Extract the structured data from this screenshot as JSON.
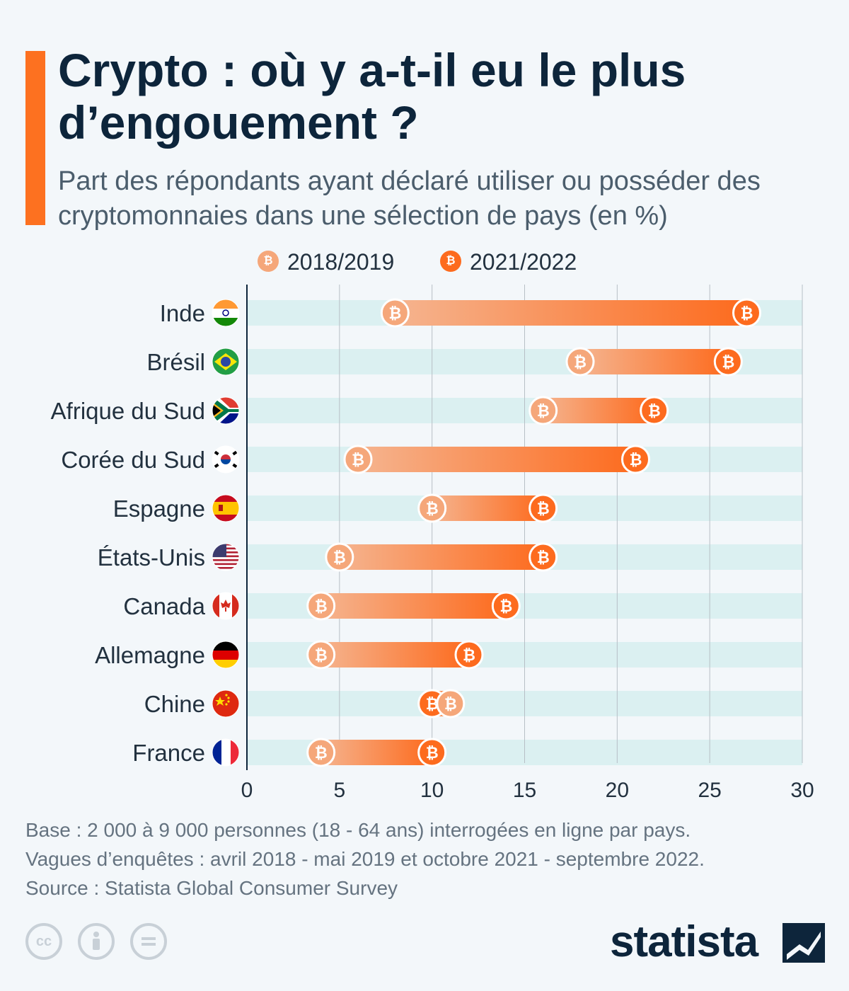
{
  "header": {
    "title": "Crypto : où y a-t-il eu le plus d’engouement ?",
    "subtitle": "Part des répondants ayant déclaré utiliser ou posséder des cryptomonnaies dans une sélection de pays (en %)"
  },
  "legend": {
    "series1": "2018/2019",
    "series2": "2021/2022"
  },
  "colors": {
    "accent": "#fd7120",
    "series1": "#f5a77a",
    "series2": "#fd6b1e",
    "row_band": "#dbf0f1",
    "title": "#0d253b"
  },
  "chart_data": {
    "type": "dumbbell",
    "categories": [
      "Inde",
      "Brésil",
      "Afrique du Sud",
      "Corée du Sud",
      "Espagne",
      "États-Unis",
      "Canada",
      "Allemagne",
      "Chine",
      "France"
    ],
    "series": [
      {
        "name": "2018/2019",
        "values": [
          8,
          18,
          16,
          6,
          10,
          5,
          4,
          4,
          11,
          4
        ]
      },
      {
        "name": "2021/2022",
        "values": [
          27,
          26,
          22,
          21,
          16,
          16,
          14,
          12,
          10,
          10
        ]
      }
    ],
    "flags": [
      "india",
      "brazil",
      "south-africa",
      "south-korea",
      "spain",
      "usa",
      "canada",
      "germany",
      "china",
      "france"
    ],
    "xlim": [
      0,
      30
    ],
    "xticks": [
      "0",
      "5",
      "10",
      "15",
      "20",
      "25",
      "30"
    ],
    "grid": true
  },
  "footer": {
    "base": "Base : 2 000 à 9 000 personnes (18 - 64 ans) interrogées en ligne par pays.",
    "waves": "Vagues d’enquêtes : avril 2018 - mai 2019 et octobre 2021 - septembre 2022.",
    "source": "Source : Statista Global Consumer Survey"
  },
  "brand": {
    "name": "statista"
  },
  "license_icons": [
    "creative-commons-icon",
    "attribution-icon",
    "no-derivatives-icon"
  ]
}
